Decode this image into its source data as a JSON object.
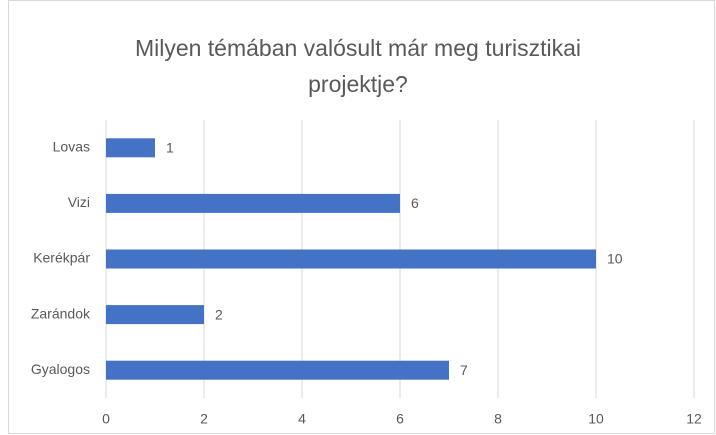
{
  "chart_data": {
    "type": "bar",
    "orientation": "horizontal",
    "title": "Milyen témában valósult már meg turisztikai projektje?",
    "categories": [
      "Lovas",
      "Vizi",
      "Kerékpár",
      "Zarándok",
      "Gyalogos"
    ],
    "values": [
      1,
      6,
      10,
      2,
      7
    ],
    "color": "#4472c4",
    "xlim": [
      0,
      12
    ],
    "xticks": [
      0,
      2,
      4,
      6,
      8,
      10,
      12
    ],
    "grid": true
  }
}
